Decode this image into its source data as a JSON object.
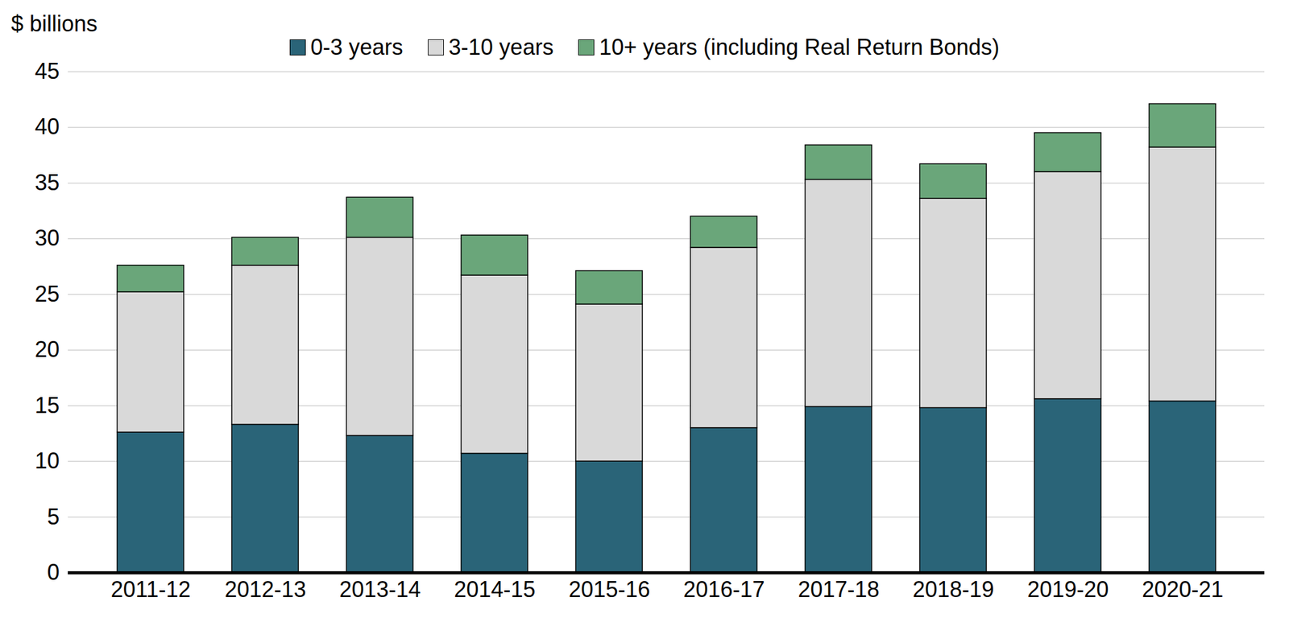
{
  "chart_data": {
    "type": "bar",
    "stacked": true,
    "grid": true,
    "legend": "top",
    "y_label": "$ billions",
    "categories": [
      "2011-12",
      "2012-13",
      "2013-14",
      "2014-15",
      "2015-16",
      "2016-17",
      "2017-18",
      "2018-19",
      "2019-20",
      "2020-21"
    ],
    "series": [
      {
        "name": "0-3 years",
        "color": "#2a6478",
        "values": [
          12.6,
          13.3,
          12.3,
          10.7,
          10.0,
          13.0,
          14.9,
          14.8,
          15.6,
          15.4
        ]
      },
      {
        "name": "3-10 years",
        "color": "#d9d9d9",
        "values": [
          12.6,
          14.3,
          17.8,
          16.0,
          14.1,
          16.2,
          20.4,
          18.8,
          20.4,
          22.8
        ]
      },
      {
        "name": "10+ years (including Real Return Bonds)",
        "color": "#6aa67a",
        "values": [
          2.4,
          2.5,
          3.6,
          3.6,
          3.0,
          2.8,
          3.1,
          3.1,
          3.5,
          3.9
        ]
      }
    ],
    "ylim": [
      0,
      45
    ],
    "yticks": [
      0,
      5,
      10,
      15,
      20,
      25,
      30,
      35,
      40,
      45
    ]
  }
}
